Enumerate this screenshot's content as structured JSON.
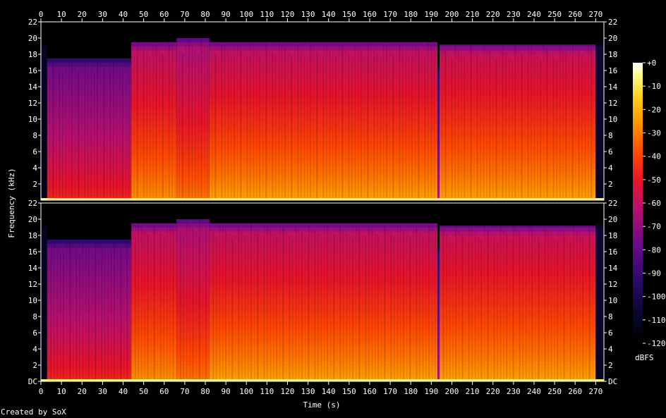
{
  "chart_data": {
    "type": "heatmap",
    "title": "",
    "xlabel": "Time (s)",
    "ylabel": "Frequency (kHz)",
    "x_range_s": [
      0,
      274
    ],
    "y_range_khz": [
      0,
      22
    ],
    "x_ticks": [
      "0",
      "10",
      "20",
      "30",
      "40",
      "50",
      "60",
      "70",
      "80",
      "90",
      "100",
      "110",
      "120",
      "130",
      "140",
      "150",
      "160",
      "170",
      "180",
      "190",
      "200",
      "210",
      "220",
      "230",
      "240",
      "250",
      "260",
      "270"
    ],
    "y_ticks": [
      "DC",
      "2",
      "4",
      "6",
      "8",
      "10",
      "12",
      "14",
      "16",
      "18",
      "20",
      "22"
    ],
    "y_ticks_top_panel_bottom": "2",
    "channels": 2,
    "colorbar": {
      "label": "dBFS",
      "ticks": [
        "+0",
        "-10",
        "-20",
        "-30",
        "-40",
        "-50",
        "-60",
        "-70",
        "-80",
        "-90",
        "-100",
        "-110",
        "-120"
      ],
      "range_db": [
        -120,
        0
      ]
    },
    "segments": [
      {
        "start_s": 0,
        "end_s": 3,
        "cutoff_khz": 20.0,
        "floor_db": -115,
        "hf_db": -110
      },
      {
        "start_s": 3,
        "end_s": 44,
        "cutoff_khz": 17.5,
        "floor_db": -45,
        "hf_db": -78
      },
      {
        "start_s": 44,
        "end_s": 66,
        "cutoff_khz": 19.5,
        "floor_db": -25,
        "hf_db": -62
      },
      {
        "start_s": 66,
        "end_s": 82,
        "cutoff_khz": 20.0,
        "floor_db": -30,
        "hf_db": -66
      },
      {
        "start_s": 82,
        "end_s": 193,
        "cutoff_khz": 19.5,
        "floor_db": -22,
        "hf_db": -62
      },
      {
        "start_s": 193,
        "end_s": 194,
        "cutoff_khz": 17.0,
        "floor_db": -60,
        "hf_db": -95
      },
      {
        "start_s": 194,
        "end_s": 270,
        "cutoff_khz": 19.2,
        "floor_db": -22,
        "hf_db": -60
      },
      {
        "start_s": 270,
        "end_s": 274,
        "cutoff_khz": 20.0,
        "floor_db": -110,
        "hf_db": -105
      }
    ]
  },
  "footer": {
    "credit": "Created by SoX"
  }
}
